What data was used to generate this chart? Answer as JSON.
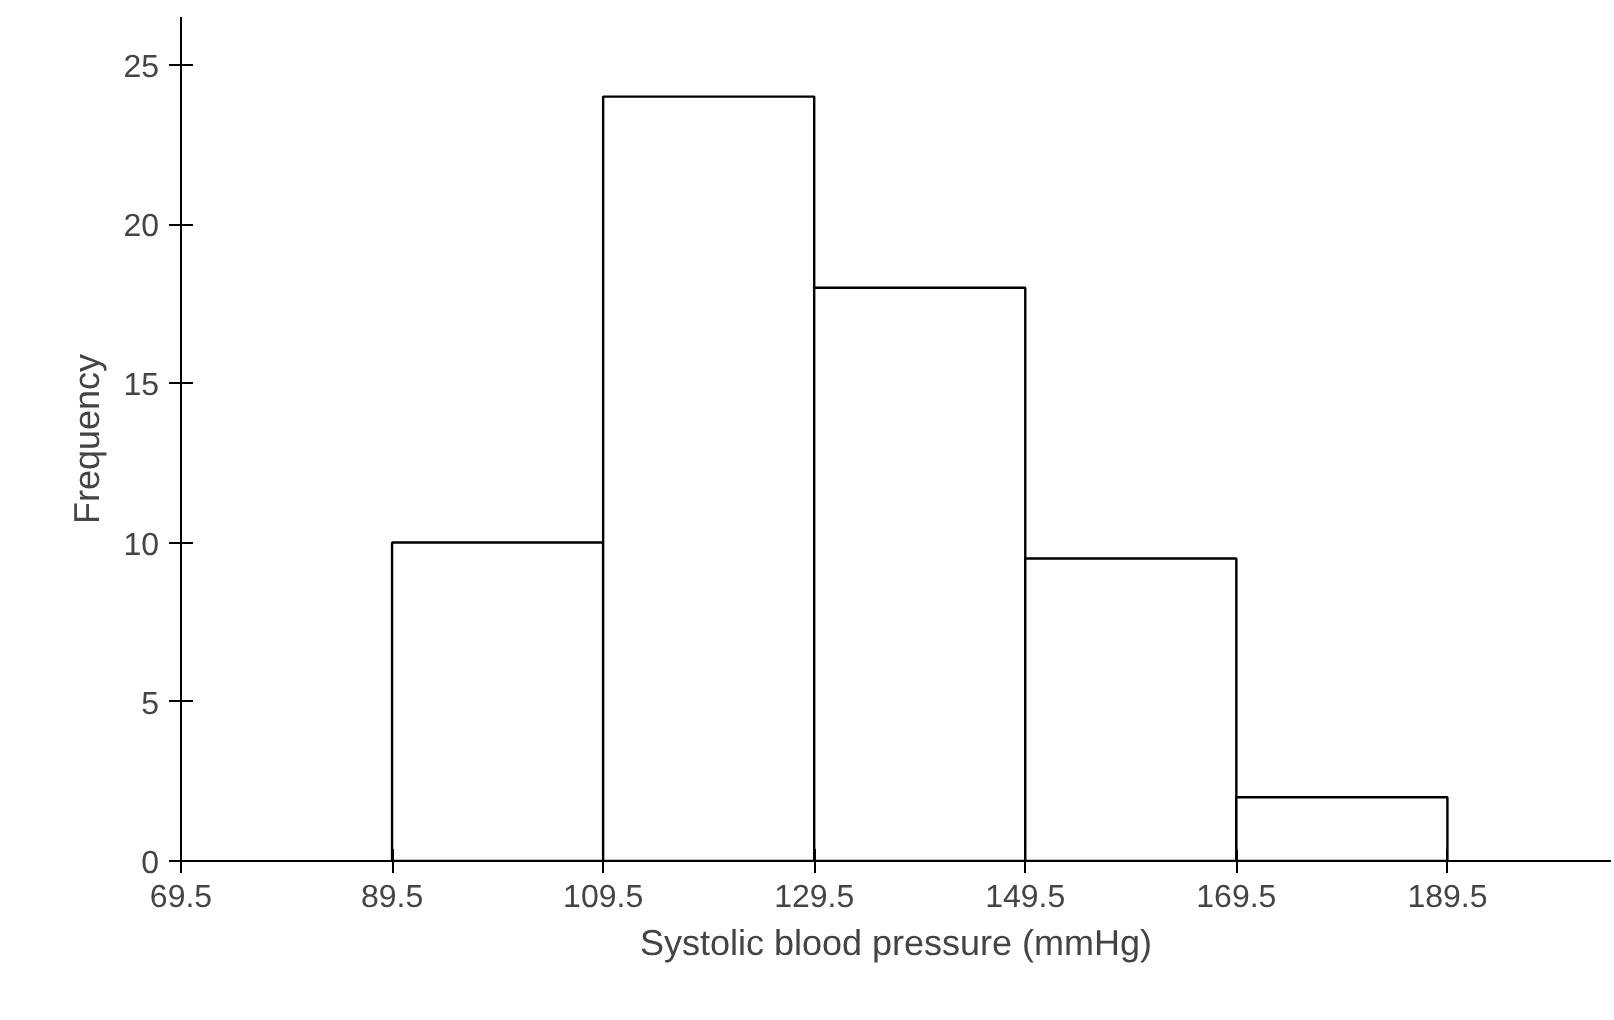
{
  "chart_data": {
    "type": "histogram",
    "xlabel": "Systolic blood pressure (mmHg)",
    "ylabel": "Frequency",
    "bins": [
      89.5,
      109.5,
      129.5,
      149.5,
      169.5,
      189.5
    ],
    "values": [
      10,
      24,
      18,
      9.5,
      2
    ],
    "color": "#ffffff",
    "xlim": [
      69.5,
      205
    ],
    "xticks": [
      69.5,
      89.5,
      109.5,
      129.5,
      149.5,
      169.5,
      189.5
    ],
    "ylim": [
      0,
      26.5
    ],
    "yticks": [
      0,
      5,
      10,
      15,
      20,
      25
    ],
    "grid": false
  }
}
